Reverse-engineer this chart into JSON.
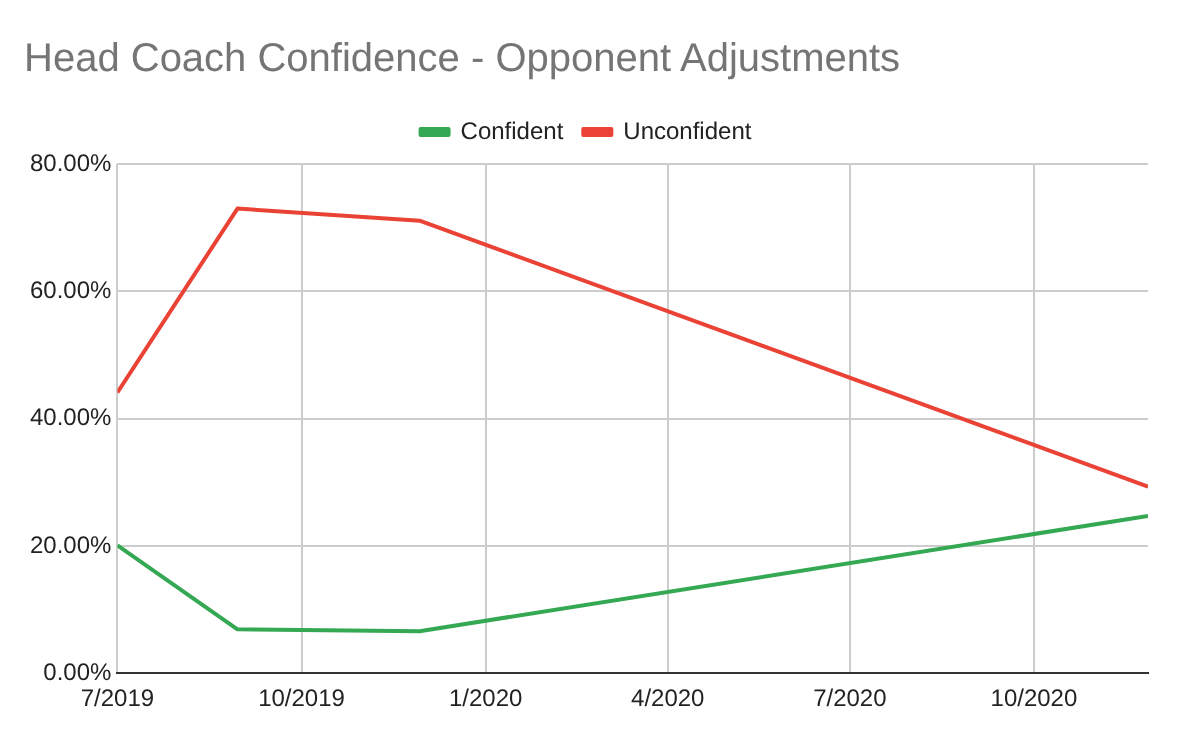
{
  "chart_data": {
    "type": "line",
    "title": "Head Coach Confidence - Opponent Adjustments",
    "x": [
      "2019-07-01",
      "2019-08-30",
      "2019-11-29",
      "2020-11-27"
    ],
    "series": [
      {
        "name": "Confident",
        "color": "#34a853",
        "values": [
          20.1,
          6.9,
          6.6,
          24.7
        ]
      },
      {
        "name": "Unconfident",
        "color": "#ea4335",
        "values": [
          44.1,
          73.0,
          71.1,
          29.3
        ]
      }
    ],
    "xlim": [
      "2019-07-01",
      "2020-11-27"
    ],
    "xticks": [
      {
        "value": "2019-07",
        "label": "7/2019"
      },
      {
        "value": "2019-10",
        "label": "10/2019"
      },
      {
        "value": "2020-01",
        "label": "1/2020"
      },
      {
        "value": "2020-04",
        "label": "4/2020"
      },
      {
        "value": "2020-07",
        "label": "7/2020"
      },
      {
        "value": "2020-10",
        "label": "10/2020"
      }
    ],
    "ylim": [
      0,
      80
    ],
    "yticks": [
      {
        "value": 0,
        "label": "0.00%"
      },
      {
        "value": 20,
        "label": "20.00%"
      },
      {
        "value": 40,
        "label": "40.00%"
      },
      {
        "value": 60,
        "label": "60.00%"
      },
      {
        "value": 80,
        "label": "80.00%"
      }
    ],
    "grid": true,
    "legend": "top",
    "marker": "none",
    "line_style": "solid"
  }
}
